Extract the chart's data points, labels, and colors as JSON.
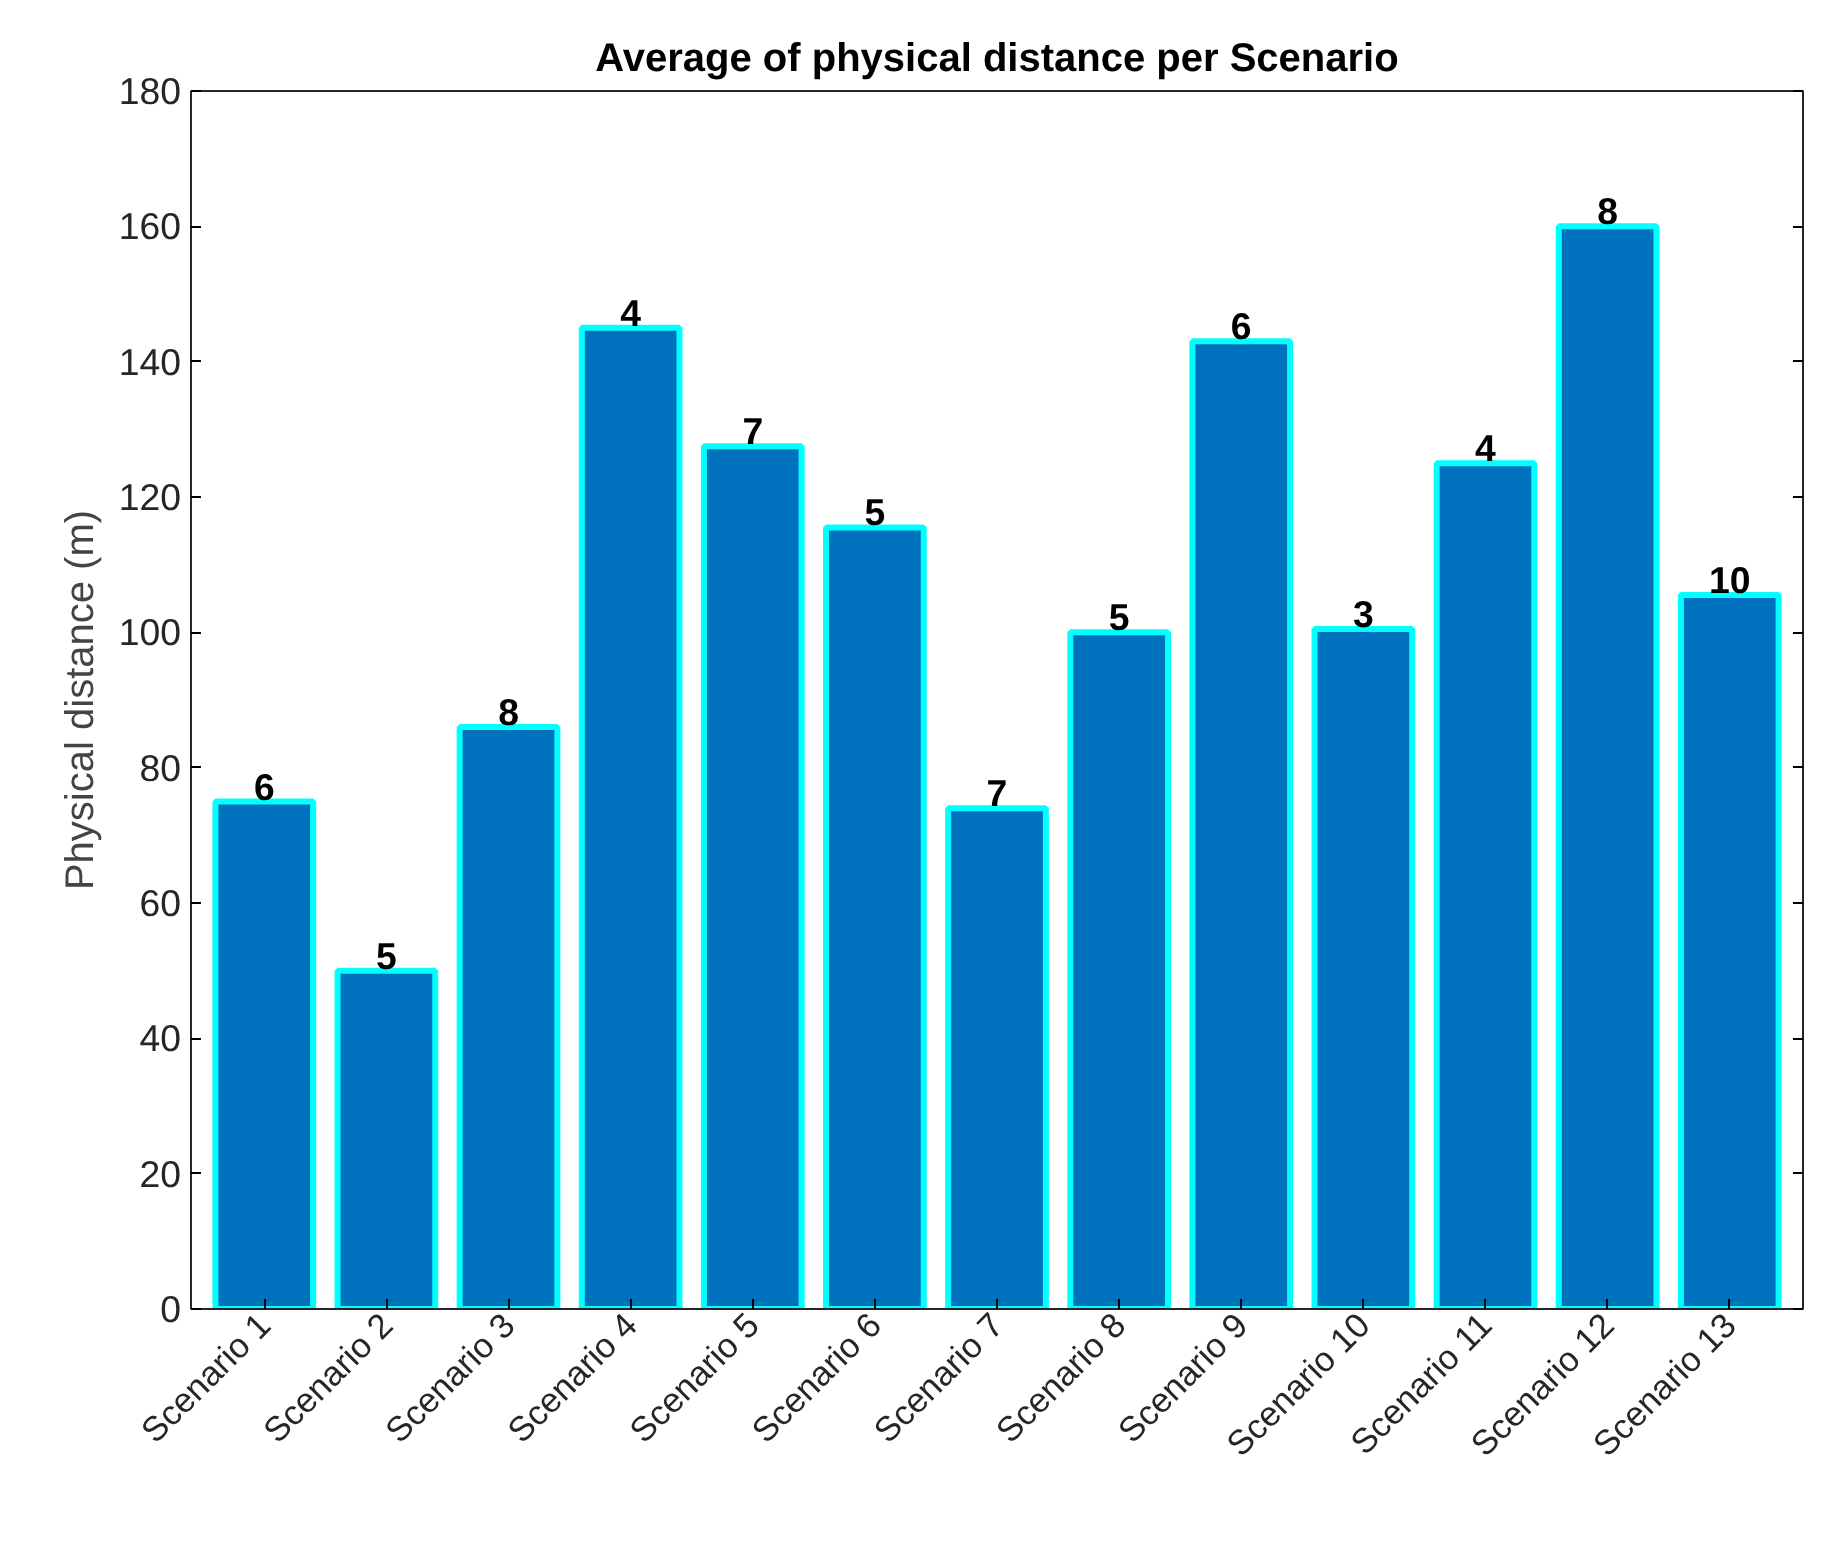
{
  "chart_data": {
    "type": "bar",
    "title": "Average of physical distance per Scenario",
    "ylabel": "Physical distance (m)",
    "categories": [
      "Scenario 1",
      "Scenario 2",
      "Scenario 3",
      "Scenario 4",
      "Scenario 5",
      "Scenario 6",
      "Scenario 7",
      "Scenario 8",
      "Scenario 9",
      "Scenario 10",
      "Scenario 11",
      "Scenario 12",
      "Scenario 13"
    ],
    "values": [
      75,
      50,
      86,
      145,
      127.5,
      115.5,
      74,
      100,
      143,
      100.5,
      125,
      160,
      105.5
    ],
    "color": "#0072bd",
    "ylim": [
      0,
      180
    ],
    "yticks": [
      0,
      20,
      40,
      60,
      80,
      100,
      120,
      140,
      160,
      180
    ],
    "grid": false,
    "annotations": [
      {
        "text": "6",
        "x": "Scenario 1",
        "y": 75
      },
      {
        "text": "5",
        "x": "Scenario 2",
        "y": 50
      },
      {
        "text": "8",
        "x": "Scenario 3",
        "y": 86
      },
      {
        "text": "4",
        "x": "Scenario 4",
        "y": 145
      },
      {
        "text": "7",
        "x": "Scenario 5",
        "y": 127.5
      },
      {
        "text": "5",
        "x": "Scenario 6",
        "y": 115.5
      },
      {
        "text": "7",
        "x": "Scenario 7",
        "y": 74
      },
      {
        "text": "5",
        "x": "Scenario 8",
        "y": 100
      },
      {
        "text": "6",
        "x": "Scenario 9",
        "y": 143
      },
      {
        "text": "3",
        "x": "Scenario 10",
        "y": 100.5
      },
      {
        "text": "4",
        "x": "Scenario 11",
        "y": 125
      },
      {
        "text": "8",
        "x": "Scenario 12",
        "y": 160
      },
      {
        "text": "10",
        "x": "Scenario 13",
        "y": 105.5
      }
    ]
  }
}
